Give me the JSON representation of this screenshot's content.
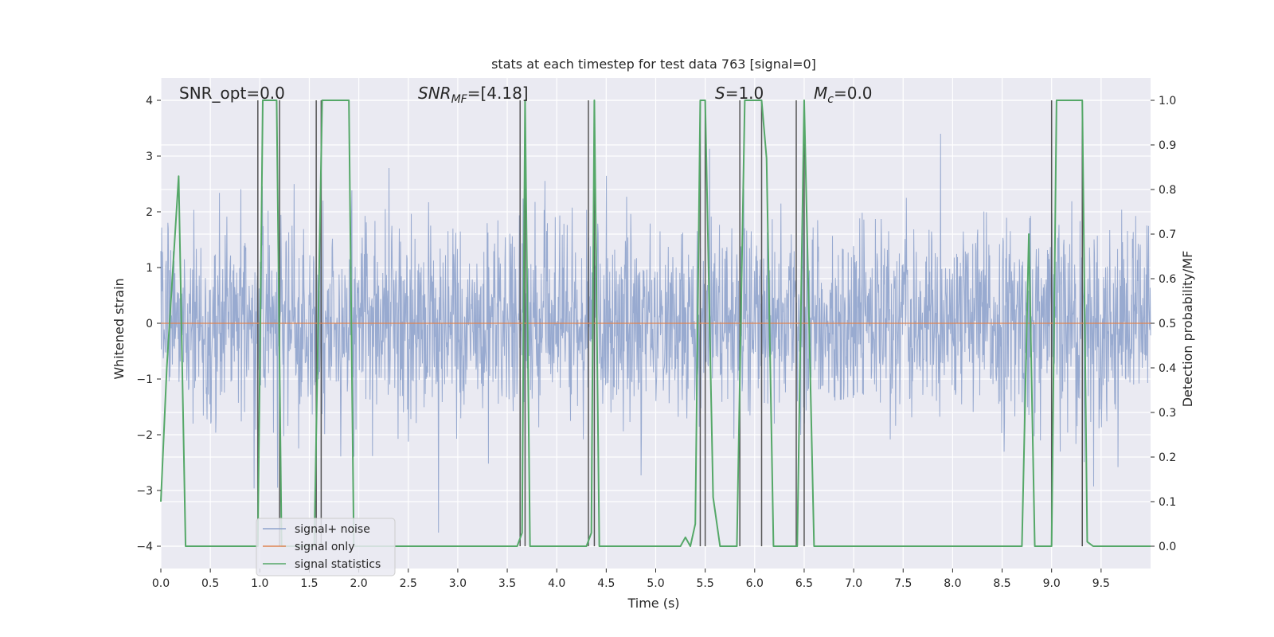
{
  "chart_data": {
    "type": "line",
    "title": "stats at each timestep for test data 763 [signal=0]",
    "xlabel": "Time (s)",
    "ylabel": "Whitened strain",
    "ylabel_right": "Detection probability/MF",
    "xlim": [
      0.0,
      10.0
    ],
    "ylim": [
      -4.4,
      4.4
    ],
    "ylim_right": [
      -0.05,
      1.05
    ],
    "xticks": [
      "0.0",
      "0.5",
      "1.0",
      "1.5",
      "2.0",
      "2.5",
      "3.0",
      "3.5",
      "4.0",
      "4.5",
      "5.0",
      "5.5",
      "6.0",
      "6.5",
      "7.0",
      "7.5",
      "8.0",
      "8.5",
      "9.0",
      "9.5"
    ],
    "yticks": [
      "−4",
      "−3",
      "−2",
      "−1",
      "0",
      "1",
      "2",
      "3",
      "4"
    ],
    "yticks_right": [
      "0.0",
      "0.1",
      "0.2",
      "0.3",
      "0.4",
      "0.5",
      "0.6",
      "0.7",
      "0.8",
      "0.9",
      "1.0"
    ],
    "grid": true,
    "legend_position": "lower-left",
    "annotations": {
      "snr_opt": "SNR_opt=0.0",
      "snr_mf_prefix": "SNR",
      "snr_mf_sub": "MF",
      "snr_mf_suffix": "=[4.18]",
      "s_var": "S",
      "s_suffix": "=1.0",
      "mc_var": "M",
      "mc_sub": "c",
      "mc_suffix": "=0.0"
    },
    "series": [
      {
        "name": "signal+ noise",
        "color": "#8fa3cc",
        "noise_spread": 1.6,
        "noise_max": 3.4,
        "noise_min": -3.9
      },
      {
        "name": "signal only",
        "color": "#dd8452",
        "values_constant": 0.0
      },
      {
        "name": "signal statistics",
        "color": "#55a868",
        "axis": "right",
        "x": [
          0.0,
          0.06,
          0.18,
          0.25,
          0.98,
          1.03,
          1.1,
          1.17,
          1.22,
          1.55,
          1.63,
          1.9,
          1.95,
          3.6,
          3.65,
          3.68,
          3.73,
          4.3,
          4.35,
          4.38,
          4.43,
          5.25,
          5.3,
          5.35,
          5.4,
          5.45,
          5.5,
          5.58,
          5.65,
          5.82,
          5.9,
          6.07,
          6.12,
          6.19,
          6.43,
          6.5,
          6.6,
          8.7,
          8.77,
          8.83,
          9.0,
          9.05,
          9.31,
          9.36,
          9.42,
          10.0
        ],
        "y": [
          0.1,
          0.4,
          0.83,
          0.0,
          0.0,
          1.0,
          1.0,
          1.0,
          0.0,
          0.0,
          1.0,
          1.0,
          0.0,
          0.0,
          0.03,
          1.0,
          0.0,
          0.0,
          0.03,
          1.0,
          0.0,
          0.0,
          0.02,
          0.0,
          0.05,
          1.0,
          1.0,
          0.11,
          0.0,
          0.0,
          1.0,
          1.0,
          0.87,
          0.0,
          0.0,
          1.0,
          0.0,
          0.0,
          0.7,
          0.0,
          0.0,
          1.0,
          1.0,
          0.01,
          0.0,
          0.0
        ]
      }
    ],
    "vertical_markers": {
      "color": "#555555",
      "x": [
        0.98,
        1.2,
        1.57,
        1.62,
        3.63,
        3.68,
        4.32,
        4.38,
        5.45,
        5.5,
        5.85,
        6.07,
        6.42,
        6.5,
        9.0,
        9.31
      ]
    }
  }
}
